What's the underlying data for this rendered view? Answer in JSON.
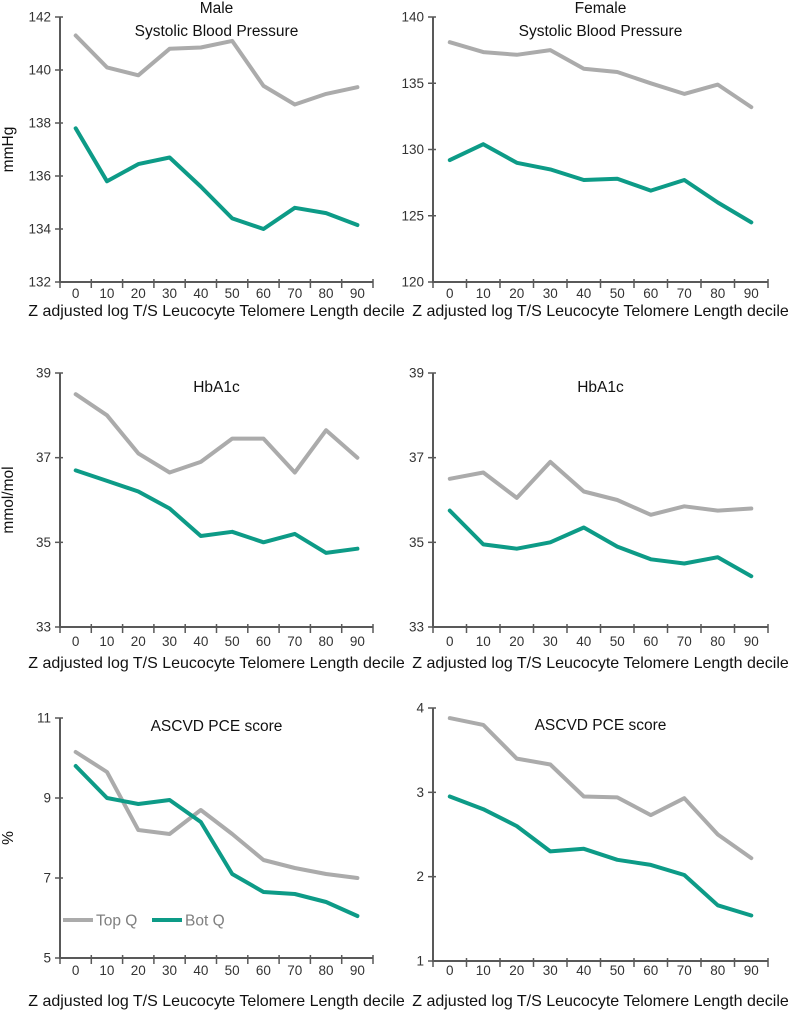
{
  "figure": {
    "x_axis_label": "Z adjusted log T/S Leucocyte Telomere Length decile"
  },
  "legend": {
    "top_q_label": "Top Q",
    "bot_q_label": "Bot Q"
  },
  "colors": {
    "top_q": "#ababab",
    "bot_q": "#0d9b87"
  },
  "chart_data": [
    {
      "type": "line",
      "title": [
        "Male",
        "Systolic Blood Pressure"
      ],
      "ylabel": "mmHg",
      "xlabel": "Z adjusted log T/S Leucocyte Telomere Length decile",
      "ylim": [
        132,
        142
      ],
      "yticks": [
        132,
        134,
        136,
        138,
        140,
        142
      ],
      "x": [
        0,
        10,
        20,
        30,
        40,
        50,
        60,
        70,
        80,
        90
      ],
      "series": [
        {
          "name": "Top Q",
          "values": [
            141.3,
            140.1,
            139.8,
            140.8,
            140.85,
            141.1,
            139.4,
            138.7,
            139.1,
            139.35
          ]
        },
        {
          "name": "Bot Q",
          "values": [
            137.8,
            135.8,
            136.45,
            136.7,
            135.6,
            134.4,
            134.0,
            134.8,
            134.6,
            134.15
          ]
        }
      ],
      "grid": false,
      "show_legend": false
    },
    {
      "type": "line",
      "title": [
        "Female",
        "Systolic Blood Pressure"
      ],
      "ylabel": null,
      "xlabel": "Z adjusted log T/S Leucocyte Telomere Length decile",
      "ylim": [
        120,
        140
      ],
      "yticks": [
        120,
        125,
        130,
        135,
        140
      ],
      "x": [
        0,
        10,
        20,
        30,
        40,
        50,
        60,
        70,
        80,
        90
      ],
      "series": [
        {
          "name": "Top Q",
          "values": [
            138.1,
            137.35,
            137.15,
            137.5,
            136.1,
            135.85,
            135.0,
            134.2,
            134.9,
            133.2
          ]
        },
        {
          "name": "Bot Q",
          "values": [
            129.2,
            130.4,
            129.0,
            128.5,
            127.7,
            127.8,
            126.9,
            127.7,
            126.0,
            124.5
          ]
        }
      ],
      "grid": false,
      "show_legend": false
    },
    {
      "type": "line",
      "title": [
        "HbA1c"
      ],
      "ylabel": "mmol/mol",
      "xlabel": "Z adjusted log T/S Leucocyte Telomere Length decile",
      "ylim": [
        33,
        39
      ],
      "yticks": [
        33,
        35,
        37,
        39
      ],
      "x": [
        0,
        10,
        20,
        30,
        40,
        50,
        60,
        70,
        80,
        90
      ],
      "series": [
        {
          "name": "Top Q",
          "values": [
            38.5,
            38.0,
            37.1,
            36.65,
            36.9,
            37.45,
            37.45,
            36.65,
            37.65,
            37.0
          ]
        },
        {
          "name": "Bot Q",
          "values": [
            36.7,
            36.45,
            36.2,
            35.8,
            35.15,
            35.25,
            35.0,
            35.2,
            34.75,
            34.85
          ]
        }
      ],
      "grid": false,
      "show_legend": false
    },
    {
      "type": "line",
      "title": [
        "HbA1c"
      ],
      "ylabel": null,
      "xlabel": "Z adjusted log T/S Leucocyte Telomere Length decile",
      "ylim": [
        33,
        39
      ],
      "yticks": [
        33,
        35,
        37,
        39
      ],
      "x": [
        0,
        10,
        20,
        30,
        40,
        50,
        60,
        70,
        80,
        90
      ],
      "series": [
        {
          "name": "Top Q",
          "values": [
            36.5,
            36.65,
            36.05,
            36.9,
            36.2,
            36.0,
            35.65,
            35.85,
            35.75,
            35.8
          ]
        },
        {
          "name": "Bot Q",
          "values": [
            35.75,
            34.95,
            34.85,
            35.0,
            35.35,
            34.9,
            34.6,
            34.5,
            34.65,
            34.2
          ]
        }
      ],
      "grid": false,
      "show_legend": false
    },
    {
      "type": "line",
      "title": [
        "ASCVD PCE score"
      ],
      "ylabel": "%",
      "xlabel": "Z adjusted log T/S Leucocyte Telomere Length decile",
      "ylim": [
        5,
        11
      ],
      "yticks": [
        5,
        7,
        9,
        11
      ],
      "x": [
        0,
        10,
        20,
        30,
        40,
        50,
        60,
        70,
        80,
        90
      ],
      "series": [
        {
          "name": "Top Q",
          "values": [
            10.15,
            9.65,
            8.2,
            8.1,
            8.7,
            8.1,
            7.45,
            7.25,
            7.1,
            7.0
          ]
        },
        {
          "name": "Bot Q",
          "values": [
            9.8,
            9.0,
            8.85,
            8.95,
            8.4,
            7.1,
            6.65,
            6.6,
            6.4,
            6.05
          ]
        }
      ],
      "grid": false,
      "show_legend": true,
      "legend_position": "inside lower-left"
    },
    {
      "type": "line",
      "title": [
        "ASCVD PCE score"
      ],
      "ylabel": null,
      "xlabel": "Z adjusted log T/S Leucocyte Telomere Length decile",
      "ylim": [
        1,
        4
      ],
      "yticks": [
        1,
        2,
        3,
        4
      ],
      "x": [
        0,
        10,
        20,
        30,
        40,
        50,
        60,
        70,
        80,
        90
      ],
      "series": [
        {
          "name": "Top Q",
          "values": [
            3.88,
            3.8,
            3.4,
            3.33,
            2.95,
            2.94,
            2.73,
            2.93,
            2.5,
            2.22
          ]
        },
        {
          "name": "Bot Q",
          "values": [
            2.95,
            2.8,
            2.6,
            2.3,
            2.33,
            2.2,
            2.14,
            2.02,
            1.66,
            1.54
          ]
        }
      ],
      "grid": false,
      "show_legend": false
    }
  ]
}
